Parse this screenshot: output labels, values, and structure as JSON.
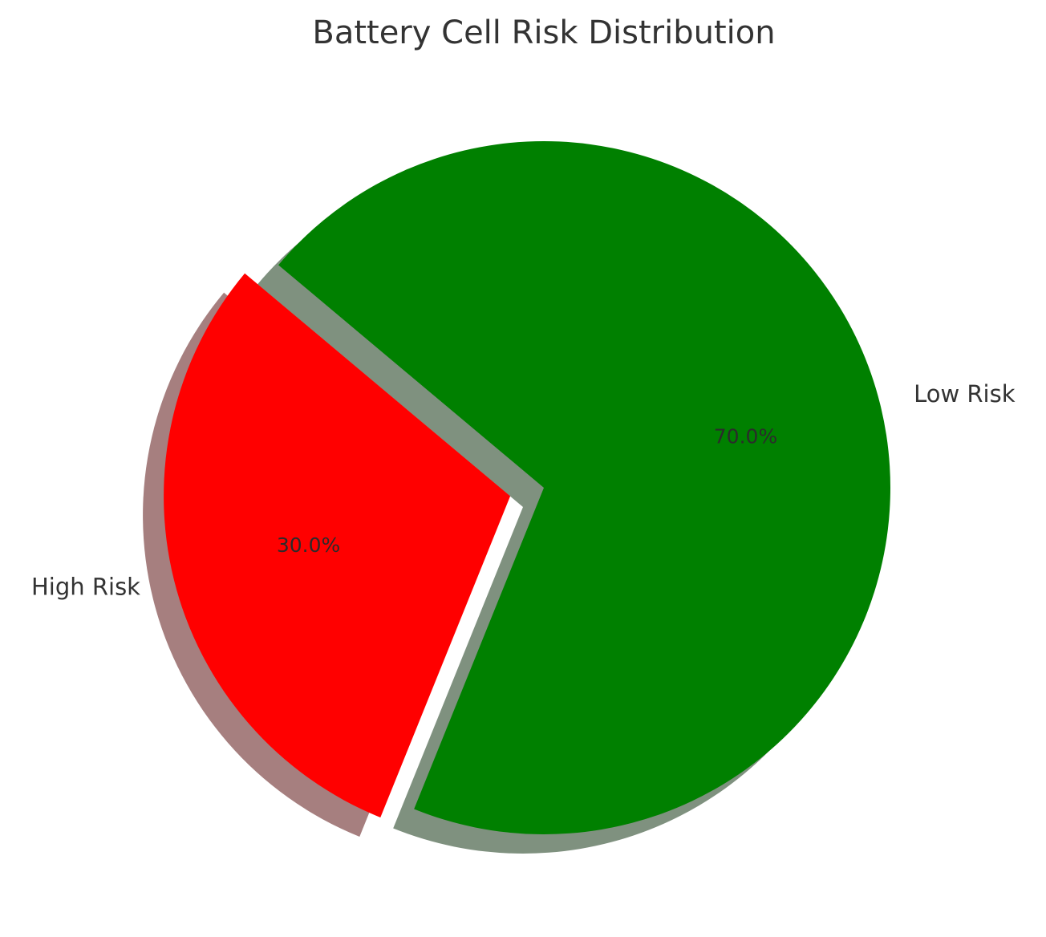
{
  "chart_data": {
    "type": "pie",
    "title": "Battery Cell Risk Distribution",
    "slices": [
      {
        "label": "High Risk",
        "value": 30.0,
        "pct_label": "30.0%",
        "color": "#ff0000",
        "shadow_color": "#a67f7f",
        "exploded": true
      },
      {
        "label": "Low Risk",
        "value": 70.0,
        "pct_label": "70.0%",
        "color": "#008000",
        "shadow_color": "#7f917f",
        "exploded": false
      }
    ],
    "start_angle_deg": 140,
    "shadow": true,
    "legend": "none"
  }
}
